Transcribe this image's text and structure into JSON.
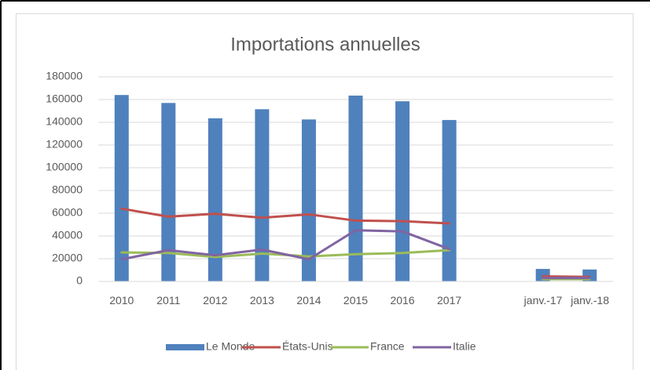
{
  "chart_data": {
    "type": "bar-line",
    "title": "Importations annuelles",
    "categories": [
      "2010",
      "2011",
      "2012",
      "2013",
      "2014",
      "2015",
      "2016",
      "2017",
      null,
      "janv.-17",
      "janv.-18"
    ],
    "series": [
      {
        "name": "Le Monde",
        "type": "bar",
        "color": "#4f81bd",
        "values": [
          164000,
          157000,
          143500,
          151500,
          142500,
          163500,
          158500,
          142000,
          null,
          11000,
          10500
        ]
      },
      {
        "name": "États-Unis",
        "type": "line",
        "color": "#c0504d",
        "values": [
          64000,
          57000,
          59500,
          56000,
          59000,
          53500,
          53000,
          51000,
          null,
          4500,
          4000
        ]
      },
      {
        "name": "France",
        "type": "line",
        "color": "#9bbb59",
        "values": [
          25500,
          25000,
          21500,
          24500,
          22000,
          24000,
          25000,
          27500,
          null,
          2000,
          2000
        ]
      },
      {
        "name": "Italie",
        "type": "line",
        "color": "#8064a2",
        "values": [
          19500,
          27500,
          23000,
          28000,
          19500,
          45000,
          44000,
          28500,
          null,
          3000,
          3000
        ]
      }
    ],
    "ylim": [
      0,
      180000
    ],
    "yticks": [
      0,
      20000,
      40000,
      60000,
      80000,
      100000,
      120000,
      140000,
      160000,
      180000
    ],
    "grid": true,
    "legend": "bottom"
  }
}
